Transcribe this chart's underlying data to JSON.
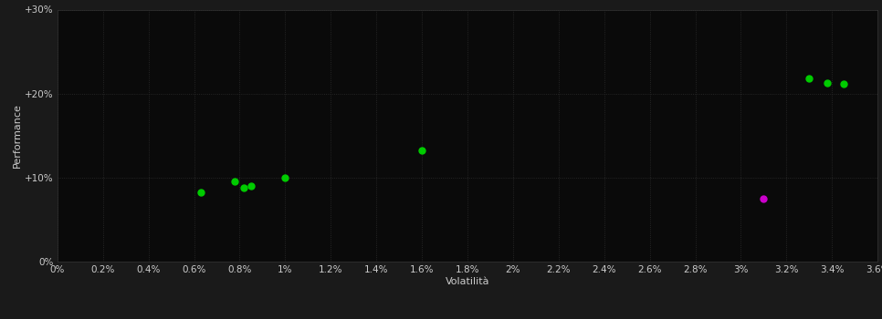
{
  "background_color": "#1a1a1a",
  "plot_bg_color": "#0a0a0a",
  "xlabel": "Volatilità",
  "ylabel": "Performance",
  "xlim": [
    0,
    0.036
  ],
  "ylim": [
    0,
    0.3
  ],
  "xticks": [
    0,
    0.002,
    0.004,
    0.006,
    0.008,
    0.01,
    0.012,
    0.014,
    0.016,
    0.018,
    0.02,
    0.022,
    0.024,
    0.026,
    0.028,
    0.03,
    0.032,
    0.034,
    0.036
  ],
  "yticks": [
    0,
    0.1,
    0.2,
    0.3
  ],
  "ytick_labels": [
    "0%",
    "+10%",
    "+20%",
    "+30%"
  ],
  "xtick_labels": [
    "0%",
    "0.2%",
    "0.4%",
    "0.6%",
    "0.8%",
    "1%",
    "1.2%",
    "1.4%",
    "1.6%",
    "1.8%",
    "2%",
    "2.2%",
    "2.4%",
    "2.6%",
    "2.8%",
    "3%",
    "3.2%",
    "3.4%",
    "3.6%"
  ],
  "green_points": [
    [
      0.0063,
      0.082
    ],
    [
      0.0078,
      0.096
    ],
    [
      0.0082,
      0.088
    ],
    [
      0.0085,
      0.09
    ],
    [
      0.01,
      0.1
    ],
    [
      0.016,
      0.132
    ],
    [
      0.033,
      0.218
    ],
    [
      0.0338,
      0.213
    ],
    [
      0.0345,
      0.212
    ]
  ],
  "magenta_points": [
    [
      0.031,
      0.075
    ]
  ],
  "green_color": "#00cc00",
  "magenta_color": "#cc00cc",
  "text_color": "#cccccc",
  "grid_color": "#2d2d2d",
  "axis_label_fontsize": 8,
  "tick_fontsize": 7.5,
  "marker_size": 25
}
